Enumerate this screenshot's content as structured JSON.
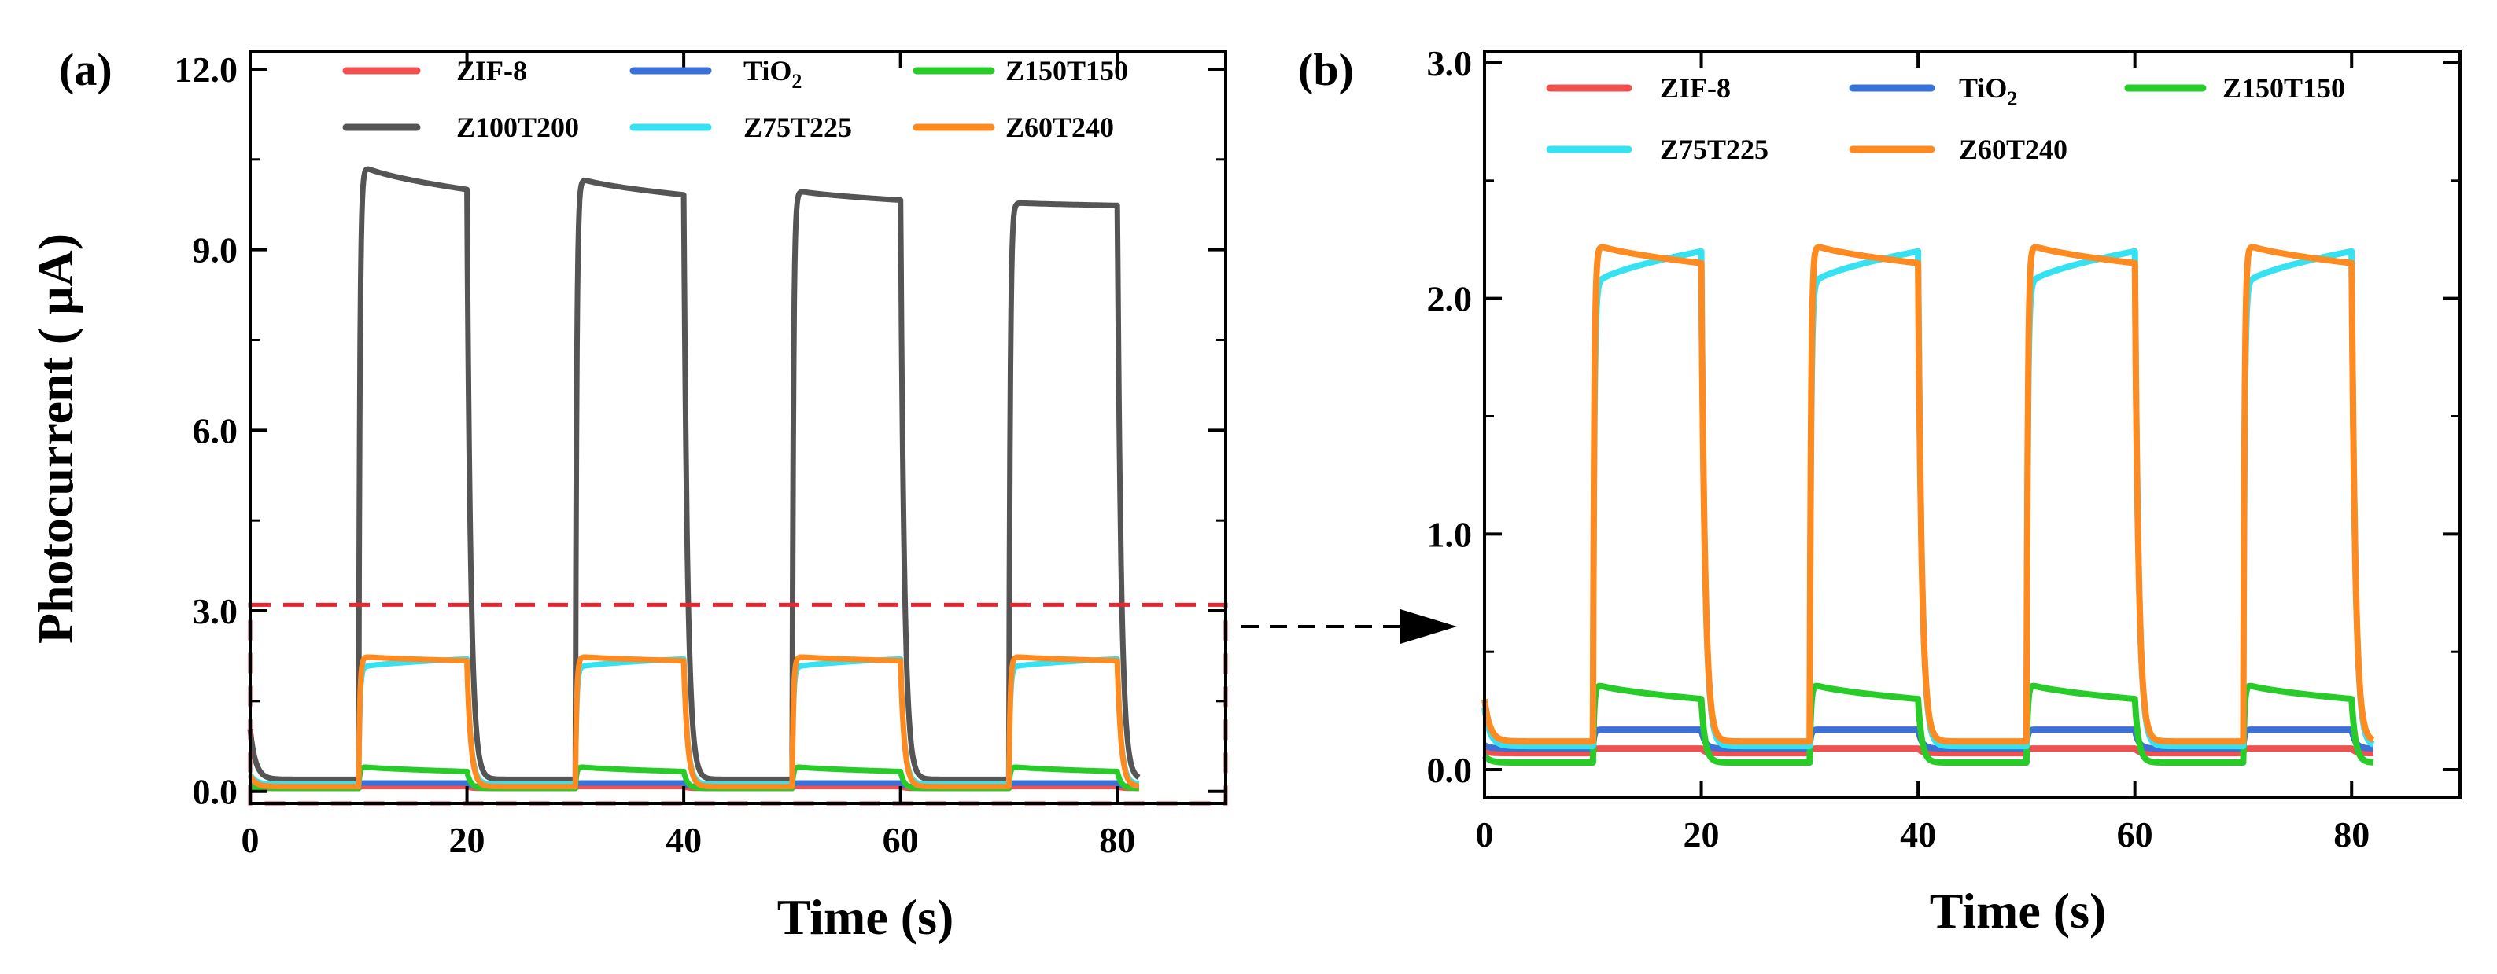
{
  "chart_data": [
    {
      "panel": "(a)",
      "type": "line",
      "xlabel": "Time (s)",
      "ylabel": "Photocurrent ( μA)",
      "xlim": [
        0,
        90
      ],
      "ylim": [
        -0.2,
        12.3
      ],
      "xticks": [
        0,
        20,
        40,
        60,
        80
      ],
      "xtick_labels": [
        "0",
        "20",
        "40",
        "60",
        "80"
      ],
      "yticks": [
        0.0,
        3.0,
        6.0,
        9.0,
        12.0
      ],
      "ytick_labels": [
        "0.0",
        "3.0",
        "6.0",
        "9.0",
        "12.0"
      ],
      "zoom_box": {
        "x_range": [
          0,
          90
        ],
        "y_range": [
          -0.2,
          3.1
        ],
        "style": "red dashed"
      },
      "series": [
        {
          "name": "ZIF-8",
          "color": "#f05050",
          "dark": 0.05,
          "light": 0.08
        },
        {
          "name": "TiO2",
          "color": "#3a70d8",
          "dark": 0.08,
          "light": 0.14
        },
        {
          "name": "Z150T150",
          "color": "#28cc28",
          "dark": 0.05,
          "light": 0.42,
          "light_end": 0.33
        },
        {
          "name": "Z100T200",
          "color": "#555555",
          "dark": 0.2,
          "light": 10.45,
          "light_end": 10.0,
          "cycle_drop": 0.22
        },
        {
          "name": "Z75T225",
          "color": "#35e2f2",
          "dark": 0.12,
          "light": 2.05,
          "light_end": 2.2
        },
        {
          "name": "Z60T240",
          "color": "#ff8a1f",
          "dark": 0.08,
          "light": 2.25,
          "light_end": 2.17
        }
      ]
    },
    {
      "panel": "(b)",
      "type": "line",
      "xlabel": "Time (s)",
      "ylabel": "",
      "xlim": [
        0,
        90
      ],
      "ylim": [
        -0.12,
        3.05
      ],
      "xticks": [
        0,
        20,
        40,
        60,
        80
      ],
      "xtick_labels": [
        "0",
        "20",
        "40",
        "60",
        "80"
      ],
      "yticks": [
        0.0,
        1.0,
        2.0,
        3.0
      ],
      "ytick_labels": [
        "0.0",
        "1.0",
        "2.0",
        "3.0"
      ],
      "series": [
        {
          "name": "ZIF-8",
          "color": "#f05050",
          "dark": 0.07,
          "light": 0.09
        },
        {
          "name": "TiO2",
          "color": "#3a70d8",
          "dark": 0.09,
          "light": 0.17
        },
        {
          "name": "Z150T150",
          "color": "#28cc28",
          "dark": 0.03,
          "light": 0.37,
          "light_end": 0.3
        },
        {
          "name": "Z75T225",
          "color": "#35e2f2",
          "dark": 0.1,
          "light": 2.05,
          "light_end": 2.2
        },
        {
          "name": "Z60T240",
          "color": "#ff8a1f",
          "dark": 0.12,
          "light": 2.24,
          "light_end": 2.15
        }
      ]
    }
  ],
  "illumination": {
    "on_intervals": [
      [
        10,
        20
      ],
      [
        30,
        40
      ],
      [
        50,
        60
      ],
      [
        70,
        80
      ]
    ],
    "end_time": 82
  },
  "legend_a": {
    "s1": "ZIF-8",
    "s2_main": "TiO",
    "s2_sub": "2",
    "s3": "Z150T150",
    "s4": "Z100T200",
    "s5": "Z75T225",
    "s6": "Z60T240"
  },
  "legend_b": {
    "s1": "ZIF-8",
    "s2_main": "TiO",
    "s2_sub": "2",
    "s3": "Z150T150",
    "s4": "Z75T225",
    "s5": "Z60T240"
  },
  "colors": {
    "zif8": "#f05050",
    "tio2": "#3a70d8",
    "z150": "#28cc28",
    "z100": "#555555",
    "z75": "#35e2f2",
    "z60": "#ff8a1f",
    "zoom": "#e8262b"
  }
}
